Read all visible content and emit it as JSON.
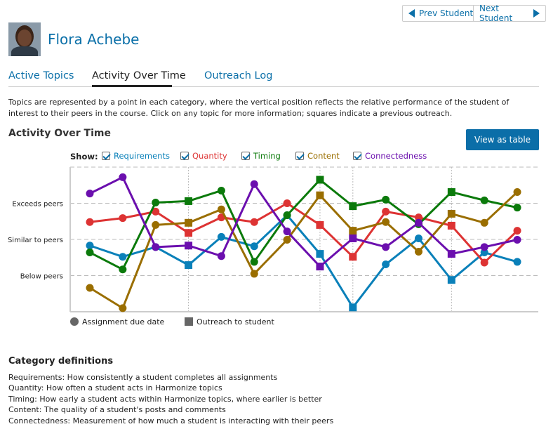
{
  "nav": {
    "prev": "Prev Student",
    "next": "Next Student"
  },
  "student": {
    "name": "Flora Achebe"
  },
  "tabs": [
    {
      "label": "Active Topics"
    },
    {
      "label": "Activity Over Time"
    },
    {
      "label": "Outreach Log"
    }
  ],
  "description": "Topics are represented by a point in each category, where the vertical position reflects the relative performance of the student of interest to their peers in the course. Click on any topic for more information; squares indicate a previous outreach.",
  "section_title": "Activity Over Time",
  "view_table_label": "View as table",
  "show_label": "Show:",
  "chart_data": {
    "type": "line",
    "title": "Activity Over Time",
    "ylim": [
      0,
      4
    ],
    "yticks": [
      {
        "value": 3,
        "label": "Exceeds peers"
      },
      {
        "value": 2,
        "label": "Similar to peers"
      },
      {
        "value": 1,
        "label": "Below peers"
      }
    ],
    "x": [
      1,
      2,
      3,
      4,
      5,
      6,
      7,
      8,
      9,
      10,
      11,
      12,
      13,
      14
    ],
    "outreach_indices": [
      3,
      7,
      8,
      11
    ],
    "grid": true,
    "legend": [
      {
        "label": "Assignment due date",
        "marker": "circle"
      },
      {
        "label": "Outreach to student",
        "marker": "square"
      }
    ],
    "series": [
      {
        "name": "Requirements",
        "color": "#0a80b9",
        "values": [
          1.83,
          1.52,
          1.79,
          1.29,
          2.07,
          1.81,
          2.67,
          1.6,
          0.12,
          1.31,
          2.03,
          0.88,
          1.64,
          1.38
        ]
      },
      {
        "name": "Quantity",
        "color": "#dd3333",
        "values": [
          2.48,
          2.59,
          2.77,
          2.18,
          2.61,
          2.48,
          3.0,
          2.4,
          1.52,
          2.77,
          2.61,
          2.38,
          1.36,
          2.24
        ]
      },
      {
        "name": "Timing",
        "color": "#0b7a0b",
        "values": [
          1.64,
          1.17,
          3.02,
          3.06,
          3.35,
          1.38,
          2.67,
          3.65,
          2.92,
          3.1,
          2.42,
          3.31,
          3.08,
          2.88
        ]
      },
      {
        "name": "Content",
        "color": "#9a6e00",
        "values": [
          0.66,
          0.1,
          2.4,
          2.46,
          2.83,
          1.05,
          1.99,
          3.22,
          2.24,
          2.48,
          1.66,
          2.71,
          2.46,
          3.31
        ]
      },
      {
        "name": "Connectedness",
        "color": "#6b0fae",
        "values": [
          3.27,
          3.72,
          1.79,
          1.83,
          1.54,
          3.53,
          2.22,
          1.25,
          2.03,
          1.79,
          2.46,
          1.6,
          1.79,
          1.99
        ]
      }
    ]
  },
  "definitions": {
    "title": "Category definitions",
    "items": [
      "Requirements: How consistently a student completes all assignments",
      "Quantity: How often a student acts in Harmonize topics",
      "Timing: How early a student acts within Harmonize topics, where earlier is better",
      "Content: The quality of a student's posts and comments",
      "Connectedness: Measurement of how much a student is interacting with their peers"
    ]
  }
}
